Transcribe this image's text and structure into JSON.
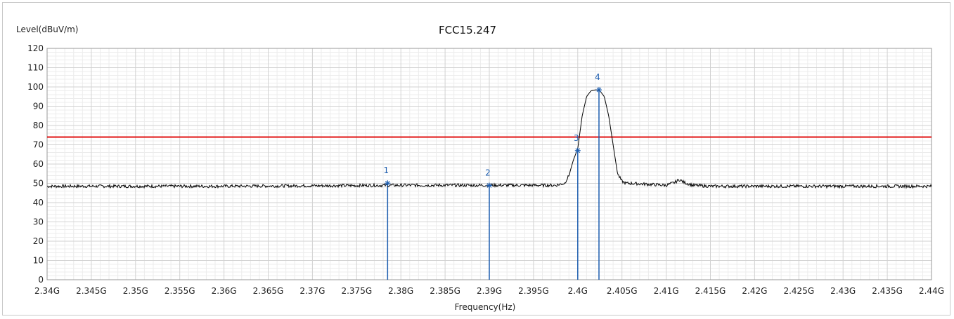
{
  "chart_data": {
    "type": "line",
    "title": "FCC15.247",
    "ylabel": "Level(dBuV/m)",
    "xlabel": "Frequency(Hz)",
    "xlim": [
      2.34,
      2.44
    ],
    "ylim": [
      0,
      120
    ],
    "grid": true,
    "x_ticks": [
      2.34,
      2.345,
      2.35,
      2.355,
      2.36,
      2.365,
      2.37,
      2.375,
      2.38,
      2.385,
      2.39,
      2.395,
      2.4,
      2.405,
      2.41,
      2.415,
      2.42,
      2.425,
      2.43,
      2.435,
      2.44
    ],
    "x_tick_labels": [
      "2.34G",
      "2.345G",
      "2.35G",
      "2.355G",
      "2.36G",
      "2.365G",
      "2.37G",
      "2.375G",
      "2.38G",
      "2.385G",
      "2.39G",
      "2.395G",
      "2.4G",
      "2.405G",
      "2.41G",
      "2.415G",
      "2.42G",
      "2.425G",
      "2.43G",
      "2.435G",
      "2.44G"
    ],
    "y_ticks": [
      0,
      10,
      20,
      30,
      40,
      50,
      60,
      70,
      80,
      90,
      100,
      110,
      120
    ],
    "y_tick_labels": [
      "0",
      "10",
      "20",
      "30",
      "40",
      "50",
      "60",
      "70",
      "80",
      "90",
      "100",
      "110",
      "120"
    ],
    "limit_line": {
      "value": 74,
      "color": "#e01010"
    },
    "trace": {
      "color": "#000000",
      "x": [
        2.34,
        2.36,
        2.38,
        2.395,
        2.3975,
        2.3985,
        2.399,
        2.3995,
        2.4,
        2.4005,
        2.401,
        2.4015,
        2.402,
        2.4025,
        2.403,
        2.4035,
        2.404,
        2.4045,
        2.405,
        2.4055,
        2.406,
        2.408,
        2.41,
        2.411,
        2.4115,
        2.412,
        2.413,
        2.415,
        2.43,
        2.44
      ],
      "y": [
        48.5,
        48.5,
        49.0,
        49.0,
        49.0,
        50.0,
        54.0,
        62.0,
        68.0,
        85.0,
        95.0,
        98.0,
        98.5,
        98.0,
        95.0,
        85.0,
        70.0,
        55.0,
        51.0,
        50.0,
        50.0,
        49.5,
        49.0,
        50.5,
        52.0,
        50.5,
        49.0,
        48.5,
        48.5,
        48.5
      ]
    },
    "markers": [
      {
        "label": "1",
        "x": 2.3785,
        "y": 50.1
      },
      {
        "label": "2",
        "x": 2.39,
        "y": 48.9
      },
      {
        "label": "3",
        "x": 2.4,
        "y": 67.0
      },
      {
        "label": "4",
        "x": 2.4024,
        "y": 98.5
      }
    ],
    "marker_color": "#1f5fb0"
  }
}
